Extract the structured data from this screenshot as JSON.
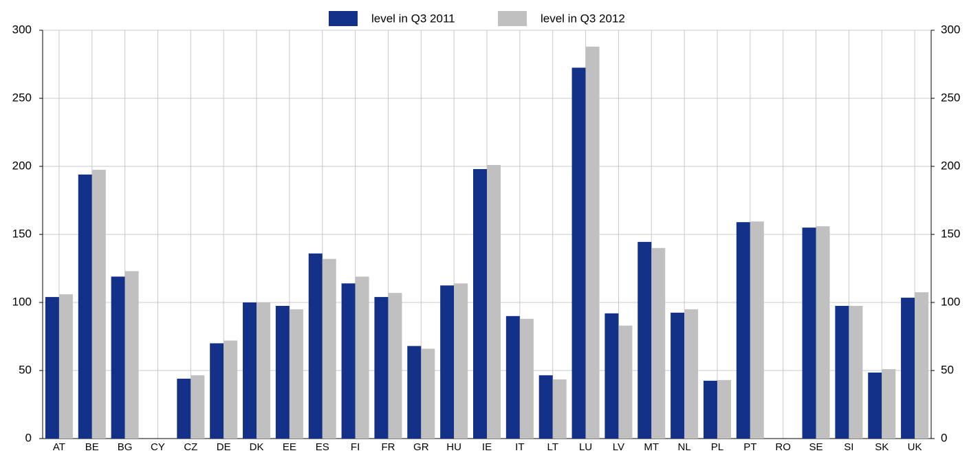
{
  "chart_data": {
    "type": "bar",
    "categories": [
      "AT",
      "BE",
      "BG",
      "CY",
      "CZ",
      "DE",
      "DK",
      "EE",
      "ES",
      "FI",
      "FR",
      "GR",
      "HU",
      "IE",
      "IT",
      "LT",
      "LU",
      "LV",
      "MT",
      "NL",
      "PL",
      "PT",
      "RO",
      "SE",
      "SI",
      "SK",
      "UK"
    ],
    "series": [
      {
        "name": "level in Q3 2011",
        "color": "#14318a",
        "values": [
          104,
          194,
          119,
          null,
          44,
          70,
          100,
          97.5,
          136,
          114,
          104,
          68,
          112.5,
          198,
          90,
          46.5,
          272.5,
          92,
          144.5,
          92.5,
          42.5,
          159,
          null,
          155,
          97.5,
          48.5,
          103.5
        ]
      },
      {
        "name": "level in Q3 2012",
        "color": "#c0c0c0",
        "values": [
          106,
          197.5,
          123,
          null,
          46.5,
          72,
          100,
          95,
          132,
          119,
          107,
          66,
          114,
          201,
          88,
          43.5,
          288,
          83,
          140,
          95,
          43,
          159.5,
          null,
          156,
          97.5,
          51,
          107.5
        ]
      }
    ],
    "ylim": [
      0,
      300
    ],
    "yticks": [
      0,
      50,
      100,
      150,
      200,
      250,
      300
    ],
    "y2lim": [
      0,
      300
    ],
    "y2ticks": [
      0,
      50,
      100,
      150,
      200,
      250,
      300
    ],
    "grid": true,
    "legend": "top"
  }
}
